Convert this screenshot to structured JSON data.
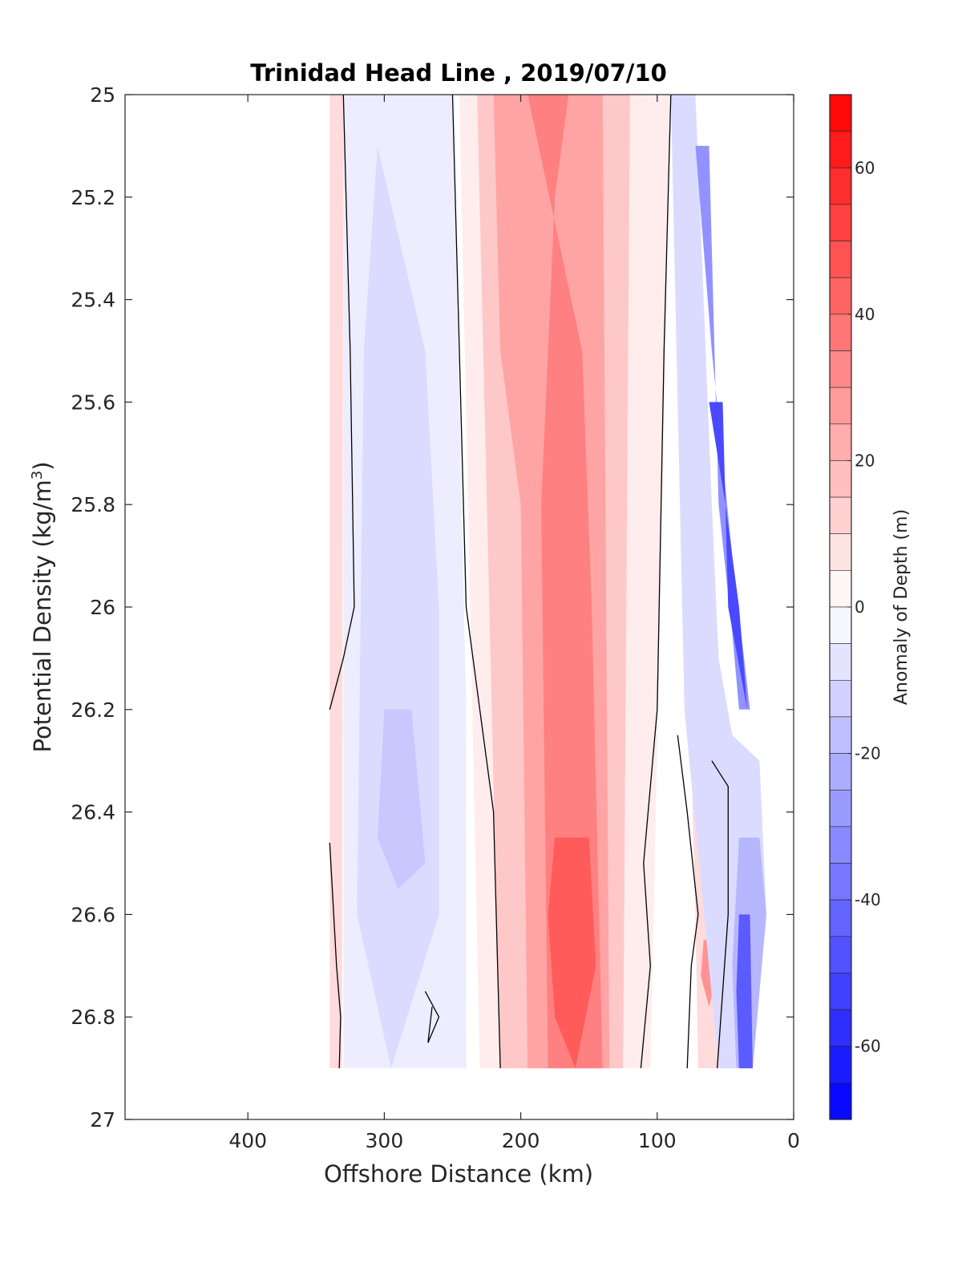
{
  "chart_data": {
    "type": "contour",
    "title": "Trinidad Head Line , 2019/07/10",
    "xlabel": "Offshore Distance (km)",
    "ylabel_main": "Potential Density (kg/m",
    "ylabel_sup": "3",
    "ylabel_end": ")",
    "colorbar_label": "Anomaly of Depth (m)",
    "xlim": [
      490,
      0
    ],
    "ylim": [
      27,
      25
    ],
    "x_reversed": true,
    "y_reversed": true,
    "x_ticks": [
      400,
      300,
      200,
      100,
      0
    ],
    "x_tick_labels": [
      "400",
      "300",
      "200",
      "100",
      "0"
    ],
    "y_ticks": [
      25,
      25.2,
      25.4,
      25.6,
      25.8,
      26,
      26.2,
      26.4,
      26.6,
      26.8,
      27
    ],
    "y_tick_labels": [
      "25",
      "25.2",
      "25.4",
      "25.6",
      "25.8",
      "26",
      "26.2",
      "26.4",
      "26.6",
      "26.8",
      "27"
    ],
    "colorbar_range": [
      -70,
      70
    ],
    "colorbar_step": 5,
    "colorbar_ticks": [
      -60,
      -40,
      -20,
      0,
      20,
      40,
      60
    ],
    "colorbar_tick_labels": [
      "-60",
      "-40",
      "-20",
      "0",
      "20",
      "40",
      "60"
    ],
    "colormap": "blue-white-red",
    "colors": {
      "negative": "#0000ff",
      "zero": "#ffffff",
      "positive": "#ff0000",
      "contour_line": "#000000"
    },
    "regions": [
      {
        "sign": "positive",
        "level": 10,
        "polygon": [
          [
            340,
            25
          ],
          [
            330,
            25
          ],
          [
            331,
            26.9
          ],
          [
            340,
            26.9
          ]
        ]
      },
      {
        "sign": "negative",
        "level": -5,
        "polygon": [
          [
            330,
            25
          ],
          [
            250,
            25
          ],
          [
            240,
            26.2
          ],
          [
            240,
            26.9
          ],
          [
            330,
            26.9
          ]
        ]
      },
      {
        "sign": "negative",
        "level": -10,
        "polygon": [
          [
            305,
            25.1
          ],
          [
            270,
            25.5
          ],
          [
            260,
            26.0
          ],
          [
            260,
            26.6
          ],
          [
            295,
            26.9
          ],
          [
            320,
            26.6
          ],
          [
            315,
            25.5
          ]
        ]
      },
      {
        "sign": "negative",
        "level": -15,
        "polygon": [
          [
            300,
            26.2
          ],
          [
            280,
            26.2
          ],
          [
            270,
            26.5
          ],
          [
            290,
            26.55
          ],
          [
            305,
            26.45
          ]
        ]
      },
      {
        "sign": "positive",
        "level": 5,
        "polygon": [
          [
            245,
            25
          ],
          [
            90,
            25
          ],
          [
            105,
            26.9
          ],
          [
            230,
            26.9
          ]
        ]
      },
      {
        "sign": "positive",
        "level": 15,
        "polygon": [
          [
            232,
            25
          ],
          [
            120,
            25
          ],
          [
            125,
            26.9
          ],
          [
            215,
            26.9
          ]
        ]
      },
      {
        "sign": "positive",
        "level": 25,
        "polygon": [
          [
            220,
            25
          ],
          [
            140,
            25
          ],
          [
            135,
            26.9
          ],
          [
            195,
            26.9
          ],
          [
            200,
            25.8
          ],
          [
            215,
            25.5
          ]
        ]
      },
      {
        "sign": "positive",
        "level": 35,
        "polygon": [
          [
            195,
            25
          ],
          [
            165,
            25
          ],
          [
            175,
            25.2
          ],
          [
            185,
            25.8
          ],
          [
            180,
            26.9
          ],
          [
            140,
            26.9
          ],
          [
            148,
            26.0
          ],
          [
            155,
            25.5
          ]
        ]
      },
      {
        "sign": "positive",
        "level": 45,
        "polygon": [
          [
            175,
            26.45
          ],
          [
            150,
            26.45
          ],
          [
            145,
            26.7
          ],
          [
            160,
            26.9
          ],
          [
            175,
            26.8
          ],
          [
            180,
            26.6
          ]
        ]
      },
      {
        "sign": "positive",
        "level": 10,
        "polygon": [
          [
            75,
            26.3
          ],
          [
            55,
            26.3
          ],
          [
            55,
            26.9
          ],
          [
            70,
            26.9
          ],
          [
            72,
            26.6
          ]
        ]
      },
      {
        "sign": "positive",
        "level": 30,
        "polygon": [
          [
            66,
            26.65
          ],
          [
            58,
            26.65
          ],
          [
            56,
            26.72
          ],
          [
            62,
            26.78
          ],
          [
            68,
            26.72
          ]
        ]
      },
      {
        "sign": "negative",
        "level": -10,
        "polygon": [
          [
            90,
            25
          ],
          [
            72,
            25
          ],
          [
            60,
            25.8
          ],
          [
            55,
            26.1
          ],
          [
            45,
            26.25
          ],
          [
            25,
            26.3
          ],
          [
            20,
            26.6
          ],
          [
            30,
            26.9
          ],
          [
            55,
            26.9
          ],
          [
            80,
            26.2
          ],
          [
            85,
            25.6
          ]
        ]
      },
      {
        "sign": "negative",
        "level": -30,
        "polygon": [
          [
            72,
            25.1
          ],
          [
            62,
            25.1
          ],
          [
            55,
            25.8
          ],
          [
            45,
            26.05
          ],
          [
            40,
            26.2
          ],
          [
            32,
            26.2
          ],
          [
            45,
            25.9
          ],
          [
            60,
            25.5
          ]
        ]
      },
      {
        "sign": "negative",
        "level": -50,
        "polygon": [
          [
            62,
            25.6
          ],
          [
            52,
            25.6
          ],
          [
            48,
            26.0
          ],
          [
            34,
            26.2
          ],
          [
            40,
            26.0
          ],
          [
            50,
            25.8
          ]
        ]
      },
      {
        "sign": "negative",
        "level": -20,
        "polygon": [
          [
            40,
            26.45
          ],
          [
            25,
            26.45
          ],
          [
            20,
            26.6
          ],
          [
            30,
            26.9
          ],
          [
            42,
            26.9
          ],
          [
            45,
            26.7
          ]
        ]
      },
      {
        "sign": "negative",
        "level": -45,
        "polygon": [
          [
            40,
            26.6
          ],
          [
            32,
            26.6
          ],
          [
            30,
            26.9
          ],
          [
            40,
            26.9
          ],
          [
            42,
            26.75
          ]
        ]
      }
    ],
    "zero_contours": [
      [
        [
          330,
          25
        ],
        [
          325,
          25.5
        ],
        [
          322,
          26.0
        ],
        [
          330,
          26.1
        ],
        [
          340,
          26.2
        ]
      ],
      [
        [
          340,
          26.46
        ],
        [
          335,
          26.7
        ],
        [
          332,
          26.8
        ],
        [
          333,
          26.9
        ]
      ],
      [
        [
          250,
          25
        ],
        [
          245,
          25.5
        ],
        [
          240,
          26.0
        ],
        [
          230,
          26.2
        ],
        [
          220,
          26.4
        ],
        [
          215,
          26.9
        ]
      ],
      [
        [
          90,
          25
        ],
        [
          95,
          25.5
        ],
        [
          100,
          26.2
        ],
        [
          110,
          26.5
        ],
        [
          105,
          26.7
        ],
        [
          112,
          26.9
        ]
      ],
      [
        [
          85,
          26.25
        ],
        [
          78,
          26.4
        ],
        [
          70,
          26.6
        ],
        [
          75,
          26.7
        ],
        [
          78,
          26.9
        ]
      ],
      [
        [
          60,
          26.3
        ],
        [
          48,
          26.35
        ],
        [
          48,
          26.6
        ],
        [
          56,
          26.9
        ]
      ],
      [
        [
          270,
          26.75
        ],
        [
          260,
          26.8
        ],
        [
          268,
          26.85
        ],
        [
          265,
          26.78
        ]
      ]
    ]
  }
}
